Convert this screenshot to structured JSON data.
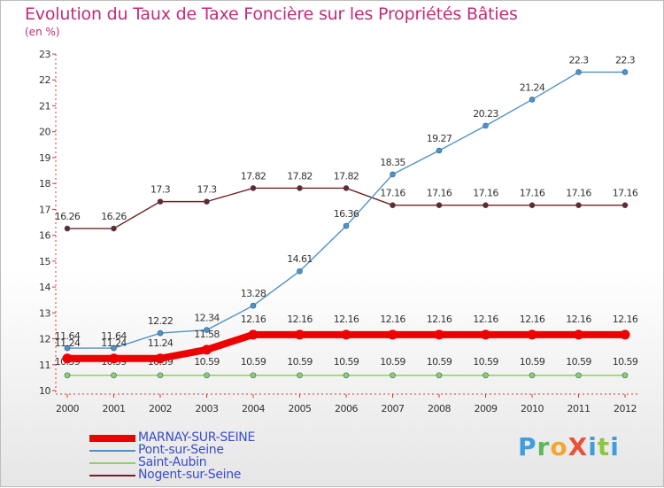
{
  "chart_data": {
    "type": "line",
    "title": "Evolution du Taux de Taxe Foncière sur les Propriétés Bâties",
    "subtitle": "(en %)",
    "x": [
      "2000",
      "2001",
      "2002",
      "2003",
      "2004",
      "2005",
      "2006",
      "2007",
      "2008",
      "2009",
      "2010",
      "2011",
      "2012"
    ],
    "ylim": [
      10,
      23
    ],
    "yticks": [
      10,
      11,
      12,
      13,
      14,
      15,
      16,
      17,
      18,
      19,
      20,
      21,
      22,
      23
    ],
    "series": [
      {
        "name": "MARNAY-SUR-SEINE",
        "color": "#ee0000",
        "values": [
          11.24,
          11.24,
          11.24,
          11.58,
          12.16,
          12.16,
          12.16,
          12.16,
          12.16,
          12.16,
          12.16,
          12.16,
          12.16
        ],
        "labels": [
          "11.24",
          "11.24",
          "11.24",
          "11.58",
          "12.16",
          "12.16",
          "12.16",
          "12.16",
          "12.16",
          "12.16",
          "12.16",
          "12.16",
          "12.16"
        ]
      },
      {
        "name": "Pont-sur-Seine",
        "color": "#4f92c8",
        "values": [
          11.64,
          11.64,
          12.22,
          12.34,
          13.28,
          14.61,
          16.36,
          18.35,
          19.27,
          20.23,
          21.24,
          22.3,
          22.3
        ],
        "labels": [
          "11.64",
          "11.64",
          "12.22",
          "12.34",
          "13.28",
          "14.61",
          "16.36",
          "18.35",
          "19.27",
          "20.23",
          "21.24",
          "22.3",
          "22.3"
        ]
      },
      {
        "name": "Saint-Aubin",
        "color": "#8fd15a",
        "values": [
          10.59,
          10.59,
          10.59,
          10.59,
          10.59,
          10.59,
          10.59,
          10.59,
          10.59,
          10.59,
          10.59,
          10.59,
          10.59
        ],
        "labels": [
          "10.59",
          "10.59",
          "10.59",
          "10.59",
          "10.59",
          "10.59",
          "10.59",
          "10.59",
          "10.59",
          "10.59",
          "10.59",
          "10.59",
          "10.59"
        ]
      },
      {
        "name": "Nogent-sur-Seine",
        "color": "#722224",
        "values": [
          16.26,
          16.26,
          17.3,
          17.3,
          17.82,
          17.82,
          17.82,
          17.16,
          17.16,
          17.16,
          17.16,
          17.16,
          17.16
        ],
        "labels": [
          "16.26",
          "16.26",
          "17.3",
          "17.3",
          "17.82",
          "17.82",
          "17.82",
          "17.16",
          "17.16",
          "17.16",
          "17.16",
          "17.16",
          "17.16"
        ]
      }
    ],
    "grid": false,
    "legend_position": "bottom-left"
  },
  "branding": {
    "logo_text": "ProXiti"
  }
}
